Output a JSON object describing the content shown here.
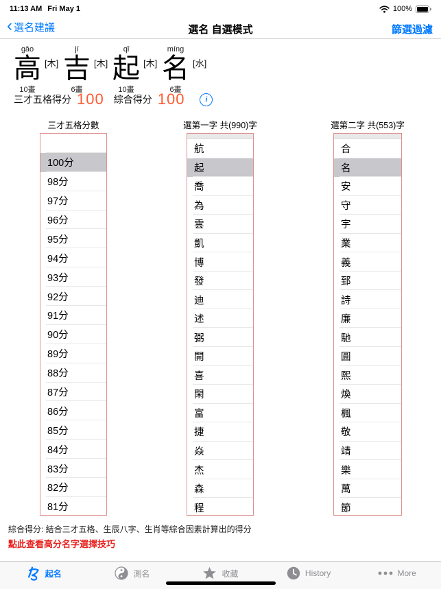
{
  "status_bar": {
    "time": "11:13 AM",
    "date": "Fri May 1",
    "battery": "100%"
  },
  "nav": {
    "back_label": "選名建議",
    "title": "選名 自選模式",
    "filter_label": "篩選過濾"
  },
  "name_preview": {
    "chars": [
      {
        "pinyin": "gāo",
        "char": "高",
        "element": "[木]",
        "strokes": "10畫"
      },
      {
        "pinyin": "jí",
        "char": "吉",
        "element": "[木]",
        "strokes": "6畫"
      },
      {
        "pinyin": "qǐ",
        "char": "起",
        "element": "[木]",
        "strokes": "10畫"
      },
      {
        "pinyin": "míng",
        "char": "名",
        "element": "[水]",
        "strokes": "6畫"
      }
    ],
    "score1_label": "三才五格得分",
    "score1_value": "100",
    "score2_label": "綜合得分",
    "score2_value": "100"
  },
  "pickers": [
    {
      "header": "三才五格分數",
      "top_partial": false,
      "selected_index": 1,
      "items": [
        "",
        "100分",
        "98分",
        "97分",
        "96分",
        "95分",
        "94分",
        "93分",
        "92分",
        "91分",
        "90分",
        "89分",
        "88分",
        "87分",
        "86分",
        "85分",
        "84分",
        "83分",
        "82分",
        "81分"
      ]
    },
    {
      "header": "選第一字 共(990)字",
      "top_partial": true,
      "selected_index": 1,
      "items": [
        "航",
        "起",
        "喬",
        "為",
        "雲",
        "凱",
        "博",
        "發",
        "迪",
        "述",
        "弼",
        "開",
        "喜",
        "閑",
        "富",
        "捷",
        "焱",
        "杰",
        "森",
        "程"
      ]
    },
    {
      "header": "選第二字 共(553)字",
      "top_partial": true,
      "selected_index": 1,
      "items": [
        "合",
        "名",
        "安",
        "守",
        "宇",
        "業",
        "義",
        "郅",
        "詩",
        "廉",
        "馳",
        "圓",
        "熙",
        "煥",
        "楓",
        "敬",
        "靖",
        "樂",
        "萬",
        "節"
      ]
    }
  ],
  "footer": {
    "note": "綜合得分: 結合三才五格、生辰八字、生肖等綜合因素計算出的得分",
    "tip_link": "點此查看高分名字選擇技巧"
  },
  "tab_bar": {
    "tabs": [
      {
        "label": "起名",
        "icon": "naming-logo-icon",
        "active": true
      },
      {
        "label": "測名",
        "icon": "yin-yang-icon",
        "active": false
      },
      {
        "label": "收藏",
        "icon": "star-icon",
        "active": false
      },
      {
        "label": "History",
        "icon": "clock-icon",
        "active": false
      },
      {
        "label": "More",
        "icon": "ellipsis-icon",
        "active": false
      }
    ]
  },
  "colors": {
    "accent_blue": "#007aff",
    "score_orange": "#ff5a30",
    "link_red": "#e8231f",
    "picker_border": "#e09090",
    "selection_gray": "#c8c7cc"
  }
}
